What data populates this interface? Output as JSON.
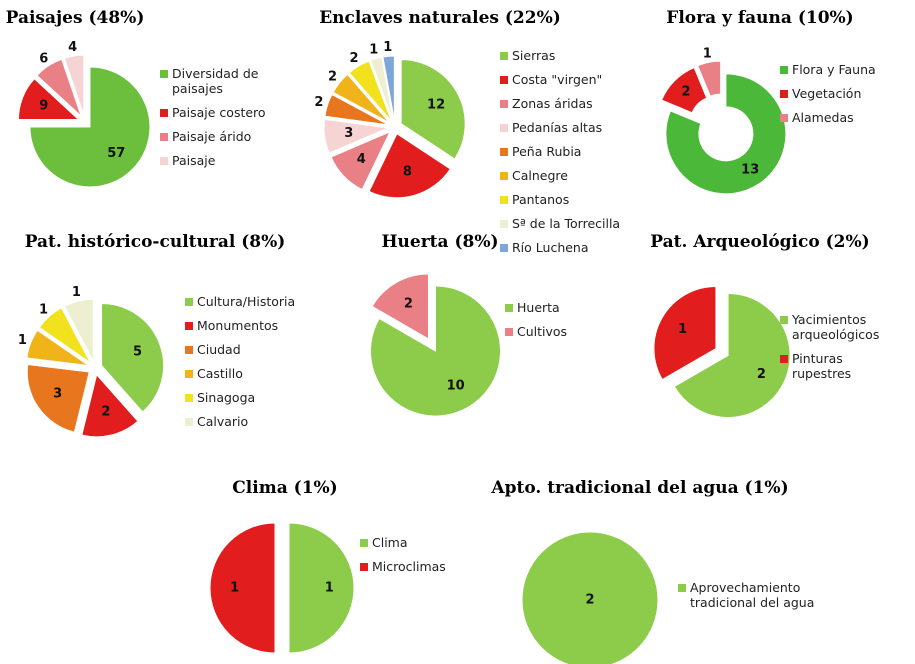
{
  "chart_data": [
    {
      "type": "pie",
      "title": "Paisajes (48%)",
      "categories": [
        "Diversidad de paisajes",
        "Paisaje costero",
        "Paisaje árido",
        "Paisaje"
      ],
      "values": [
        57,
        9,
        6,
        4
      ],
      "colors": [
        "#6cbf3c",
        "#e11d1d",
        "#e98085",
        "#f6d4d4"
      ]
    },
    {
      "type": "pie",
      "title": "Enclaves naturales (22%)",
      "categories": [
        "Sierras",
        "Costa \"virgen\"",
        "Zonas áridas",
        "Pedanías altas",
        "Peña Rubia",
        "Calnegre",
        "Pantanos",
        "Sª de la Torrecilla",
        "Río Luchena"
      ],
      "values": [
        12,
        8,
        4,
        3,
        2,
        2,
        2,
        1,
        1
      ],
      "colors": [
        "#8ccc4a",
        "#e11d1d",
        "#e98085",
        "#f6d4d4",
        "#e8761e",
        "#f0b31a",
        "#f2e21e",
        "#eeeed0",
        "#7ea6d8"
      ]
    },
    {
      "type": "donut",
      "title": "Flora y fauna (10%)",
      "categories": [
        "Flora y Fauna",
        "Vegetación",
        "Alamedas"
      ],
      "values": [
        13,
        2,
        1
      ],
      "colors": [
        "#4cb83a",
        "#e11d1d",
        "#e98085"
      ]
    },
    {
      "type": "pie",
      "title": "Pat. histórico-cultural (8%)",
      "categories": [
        "Cultura/Historia",
        "Monumentos",
        "Ciudad",
        "Castillo",
        "Sinagoga",
        "Calvario"
      ],
      "values": [
        5,
        2,
        3,
        1,
        1,
        1
      ],
      "colors": [
        "#8ccc4a",
        "#e11d1d",
        "#e8761e",
        "#f0b31a",
        "#f2e21e",
        "#eeeed0"
      ]
    },
    {
      "type": "pie",
      "title": "Huerta (8%)",
      "categories": [
        "Huerta",
        "Cultivos"
      ],
      "values": [
        10,
        2
      ],
      "colors": [
        "#8ccc4a",
        "#e98085"
      ]
    },
    {
      "type": "pie",
      "title": "Pat. Arqueológico (2%)",
      "categories": [
        "Yacimientos arqueológicos",
        "Pinturas rupestres"
      ],
      "values": [
        2,
        1
      ],
      "colors": [
        "#8ccc4a",
        "#e11d1d"
      ]
    },
    {
      "type": "pie",
      "title": "Clima (1%)",
      "categories": [
        "Clima",
        "Microclimas"
      ],
      "values": [
        1,
        1
      ],
      "colors": [
        "#8ccc4a",
        "#e11d1d"
      ]
    },
    {
      "type": "pie",
      "title": "Apto. tradicional del agua (1%)",
      "categories": [
        "Aprovechamiento tradicional del agua"
      ],
      "values": [
        2
      ],
      "colors": [
        "#8ccc4a"
      ]
    }
  ]
}
